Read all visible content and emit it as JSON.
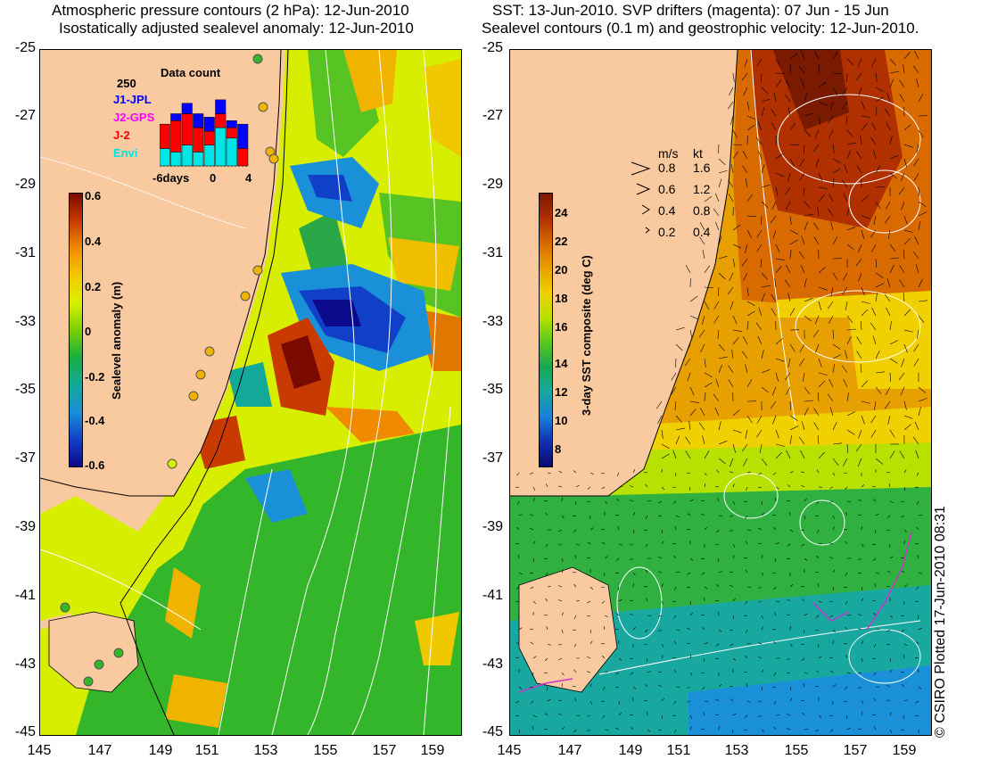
{
  "left_panel": {
    "title_line1": "Atmospheric pressure contours (2 hPa): 12-Jun-2010",
    "title_line2": "Isostatically adjusted sealevel anomaly: 12-Jun-2010",
    "y_ticks": [
      "-25",
      "-27",
      "-29",
      "-31",
      "-33",
      "-35",
      "-37",
      "-39",
      "-41",
      "-43",
      "-45"
    ],
    "x_ticks": [
      "145",
      "147",
      "149",
      "151",
      "153",
      "155",
      "157",
      "159"
    ],
    "colorbar": {
      "label": "Sealevel anomaly (m)",
      "ticks": [
        "0.6",
        "0.4",
        "0.2",
        "0",
        "-0.2",
        "-0.4",
        "-0.6"
      ],
      "colors": [
        "#7a0a00",
        "#c83a00",
        "#f08a00",
        "#f5c800",
        "#d8f000",
        "#7ad000",
        "#18b040",
        "#12a89a",
        "#1a90d8",
        "#1040c8",
        "#0a0a8a"
      ]
    },
    "data_count": {
      "title": "Data count",
      "max_label": "250",
      "axis_labels": [
        "-6days",
        "0",
        "4"
      ],
      "legend": [
        {
          "name": "J1-JPL",
          "color": "#0000ff"
        },
        {
          "name": "J2-GPS",
          "color": "#ff00ff"
        },
        {
          "name": "J-2",
          "color": "#ff0000"
        },
        {
          "name": "Envi",
          "color": "#00e5e5"
        }
      ],
      "bars": [
        {
          "cyan": 0.25,
          "red": 0.35,
          "blue": 0.0
        },
        {
          "cyan": 0.2,
          "red": 0.45,
          "blue": 0.1
        },
        {
          "cyan": 0.3,
          "red": 0.45,
          "blue": 0.15
        },
        {
          "cyan": 0.2,
          "red": 0.35,
          "blue": 0.2
        },
        {
          "cyan": 0.3,
          "red": 0.2,
          "blue": 0.2
        },
        {
          "cyan": 0.55,
          "red": 0.2,
          "blue": 0.2
        },
        {
          "cyan": 0.4,
          "red": 0.15,
          "blue": 0.1
        },
        {
          "cyan": 0.0,
          "red": 0.25,
          "blue": 0.35
        }
      ]
    }
  },
  "right_panel": {
    "title_line1": "SST: 13-Jun-2010. SVP drifters (magenta): 07 Jun - 15 Jun",
    "title_line2": "Sealevel contours (0.1 m) and geostrophic velocity: 12-Jun-2010.",
    "y_ticks": [
      "-25",
      "-27",
      "-29",
      "-31",
      "-33",
      "-35",
      "-37",
      "-39",
      "-41",
      "-43",
      "-45"
    ],
    "x_ticks": [
      "145",
      "147",
      "149",
      "151",
      "153",
      "155",
      "157",
      "159"
    ],
    "colorbar": {
      "label": "3-day SST composite (deg C)",
      "ticks": [
        "24",
        "22",
        "20",
        "18",
        "16",
        "14",
        "12",
        "10",
        "8"
      ],
      "colors": [
        "#7a1a00",
        "#b03000",
        "#d86a00",
        "#e8a000",
        "#f0d000",
        "#b8e000",
        "#58c820",
        "#18a850",
        "#18a8a0",
        "#1880d8",
        "#1030b0",
        "#0a0a70"
      ]
    },
    "velocity_legend": {
      "headers": [
        "m/s",
        "kt"
      ],
      "rows": [
        {
          "ms": "0.8",
          "kt": "1.6"
        },
        {
          "ms": "0.6",
          "kt": "1.2"
        },
        {
          "ms": "0.4",
          "kt": "0.8"
        },
        {
          "ms": "0.2",
          "kt": "0.4"
        }
      ]
    }
  },
  "credit": "© CSIRO Plotted 17-Jun-2010 08:31"
}
